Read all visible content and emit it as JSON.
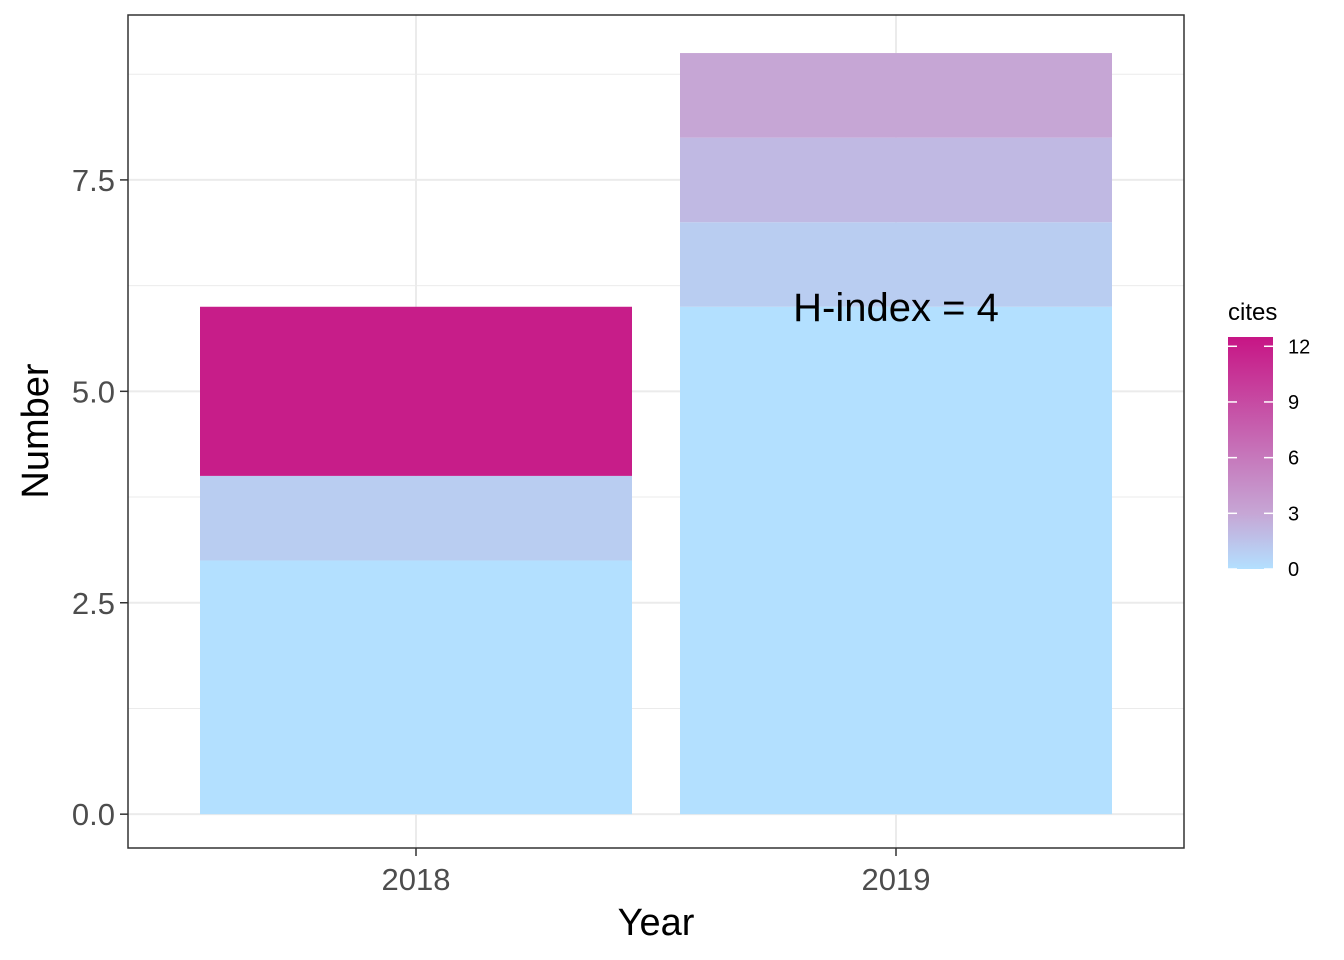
{
  "chart_data": {
    "type": "bar",
    "stacked": true,
    "xlabel": "Year",
    "ylabel": "Number",
    "categories": [
      "2018",
      "2019"
    ],
    "ylim": [
      -0.4,
      9.45
    ],
    "yticks": [
      0.0,
      2.5,
      5.0,
      7.5
    ],
    "ytick_labels": [
      "0.0",
      "2.5",
      "5.0",
      "7.5"
    ],
    "grid": true,
    "bars": [
      {
        "category": "2018",
        "segments": [
          {
            "from": 0,
            "to": 3,
            "cites": 0
          },
          {
            "from": 3,
            "to": 4,
            "cites": 1
          },
          {
            "from": 4,
            "to": 6,
            "cites": 12
          }
        ]
      },
      {
        "category": "2019",
        "segments": [
          {
            "from": 0,
            "to": 6,
            "cites": 0
          },
          {
            "from": 6,
            "to": 7,
            "cites": 1
          },
          {
            "from": 7,
            "to": 8,
            "cites": 2
          },
          {
            "from": 8,
            "to": 9,
            "cites": 3
          }
        ]
      }
    ],
    "annotation": {
      "text": "H-index =  4",
      "category": "2019",
      "y": 6
    },
    "legend": {
      "title": "cites",
      "position": "right",
      "min": 0,
      "max": 12.5,
      "ticks": [
        0,
        3,
        6,
        9,
        12
      ],
      "tick_labels": [
        "0",
        "3",
        "6",
        "9",
        "12"
      ],
      "colors": [
        "#b3e0ff",
        "#c6a6d5",
        "#c71585"
      ]
    }
  }
}
